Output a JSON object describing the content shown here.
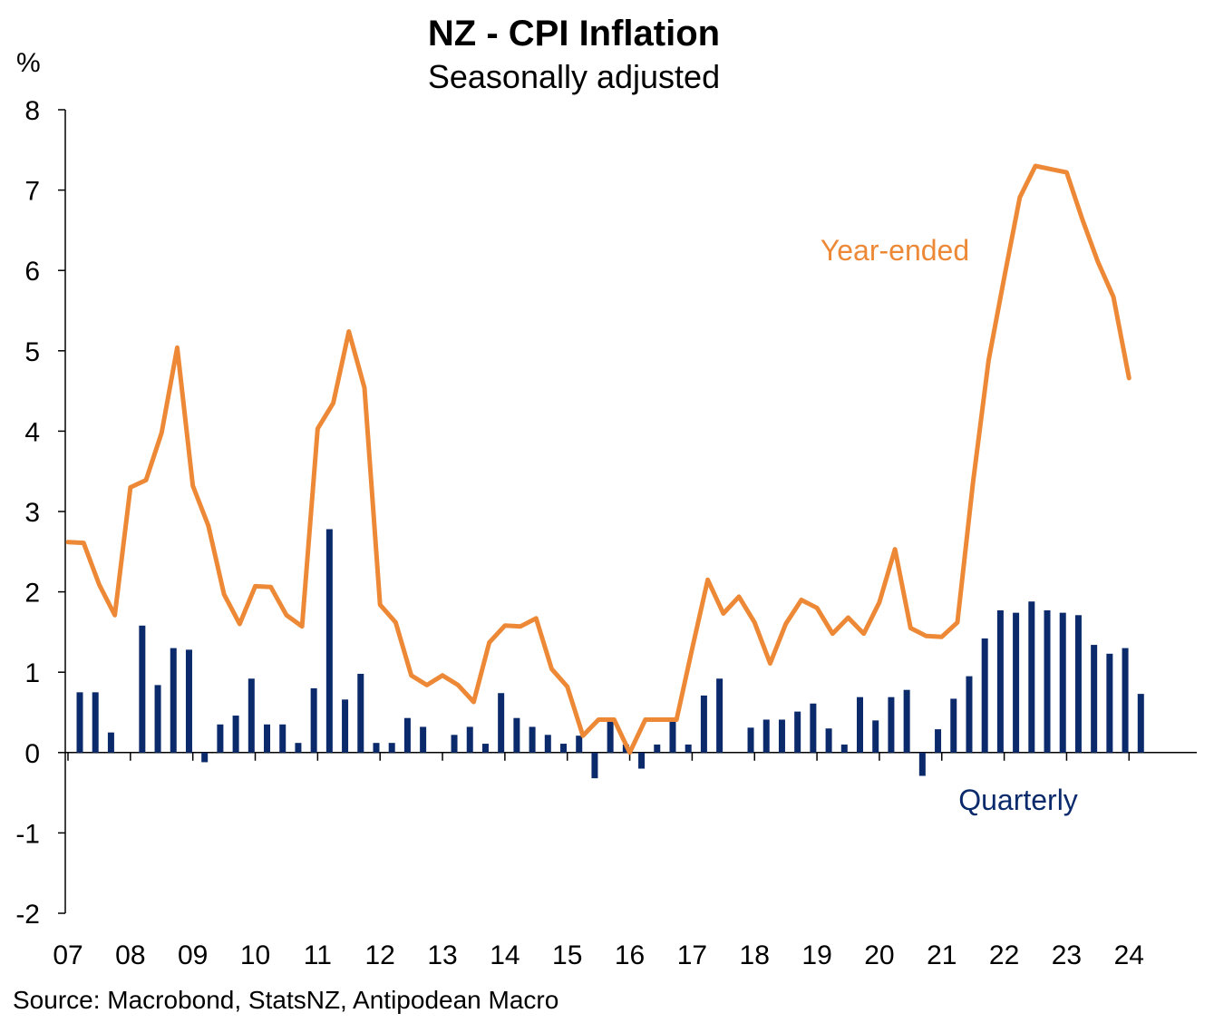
{
  "chart_data": {
    "type": "bar+line",
    "title": "NZ - CPI Inflation",
    "subtitle": "Seasonally adjusted",
    "ylabel": "%",
    "ylim": [
      -2,
      8
    ],
    "yticks": [
      8,
      7,
      6,
      5,
      4,
      3,
      2,
      1,
      0,
      -1,
      -2
    ],
    "xticks": [
      "07",
      "08",
      "09",
      "10",
      "11",
      "12",
      "13",
      "14",
      "15",
      "16",
      "17",
      "18",
      "19",
      "20",
      "21",
      "22",
      "23",
      "24"
    ],
    "x_start": "2007 Q1",
    "x_end": "2024 Q1",
    "grid": false,
    "source": "Source: Macrobond, StatsNZ, Antipodean Macro",
    "series": [
      {
        "name": "Year-ended",
        "kind": "line",
        "color": "#ED8936",
        "values": [
          2.62,
          2.61,
          2.09,
          1.71,
          3.3,
          3.39,
          3.98,
          5.04,
          3.32,
          2.82,
          1.97,
          1.6,
          2.07,
          2.06,
          1.71,
          1.57,
          4.03,
          4.35,
          5.24,
          4.54,
          1.84,
          1.62,
          0.96,
          0.84,
          0.96,
          0.84,
          0.63,
          1.37,
          1.58,
          1.57,
          1.67,
          1.04,
          0.82,
          0.21,
          0.41,
          0.41,
          0.0,
          0.41,
          0.41,
          0.41,
          1.29,
          2.15,
          1.73,
          1.94,
          1.62,
          1.11,
          1.6,
          1.9,
          1.8,
          1.48,
          1.68,
          1.48,
          1.87,
          2.53,
          1.55,
          1.45,
          1.44,
          1.62,
          3.36,
          4.88,
          5.91,
          6.91,
          7.3,
          7.26,
          7.22,
          6.64,
          6.11,
          5.67,
          4.66
        ]
      },
      {
        "name": "Quarterly",
        "kind": "bar",
        "color": "#0B2A6B",
        "values": [
          0.75,
          0.75,
          0.25,
          null,
          1.58,
          0.84,
          1.3,
          1.28,
          -0.12,
          0.35,
          0.46,
          0.92,
          0.35,
          0.35,
          0.12,
          0.8,
          2.78,
          0.66,
          0.98,
          0.12,
          0.12,
          0.43,
          0.32,
          null,
          0.22,
          0.32,
          0.11,
          0.74,
          0.43,
          0.32,
          0.22,
          0.11,
          0.21,
          -0.32,
          0.41,
          0.1,
          -0.2,
          0.1,
          0.41,
          0.1,
          0.71,
          0.92,
          null,
          0.31,
          0.41,
          0.41,
          0.51,
          0.61,
          0.3,
          0.1,
          0.69,
          0.4,
          0.69,
          0.78,
          -0.29,
          0.29,
          0.67,
          0.95,
          1.42,
          1.77,
          1.74,
          1.88,
          1.77,
          1.74,
          1.71,
          1.34,
          1.23,
          1.3,
          0.73
        ]
      }
    ]
  }
}
